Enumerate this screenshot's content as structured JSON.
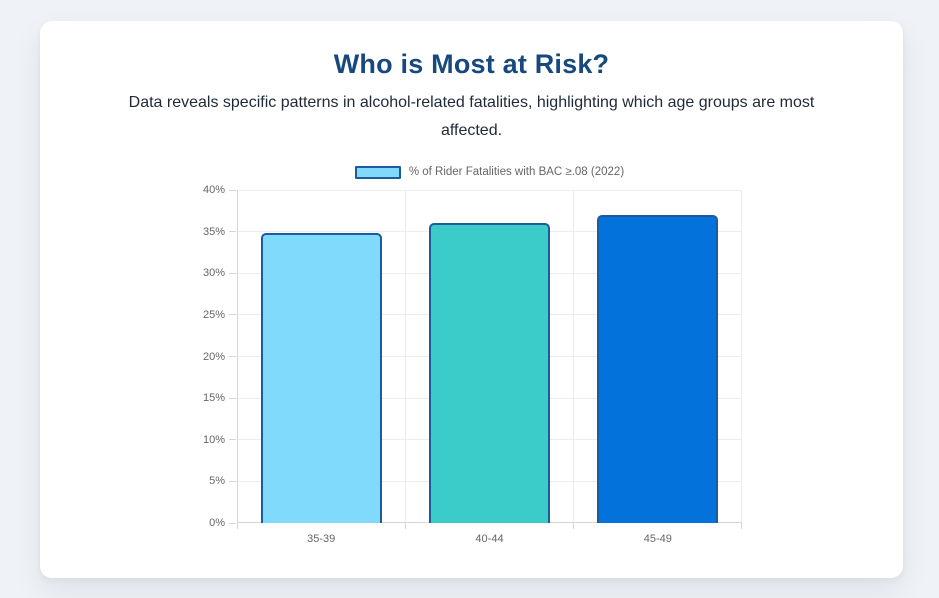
{
  "page": {
    "title": "Who is Most at Risk?",
    "subtitle": "Data reveals specific patterns in alcohol-related fatalities, highlighting which age groups are most affected."
  },
  "chart_data": {
    "type": "bar",
    "title": "Who is Most at Risk?",
    "legend_label": "% of Rider Fatalities with BAC ≥.08 (2022)",
    "legend_position": "top",
    "categories": [
      "35-39",
      "40-44",
      "45-49"
    ],
    "values": [
      34.8,
      36.0,
      37.0
    ],
    "ylim": [
      0,
      40
    ],
    "ytick_step": 5,
    "ytick_labels": [
      "0%",
      "5%",
      "10%",
      "15%",
      "20%",
      "25%",
      "30%",
      "35%",
      "40%"
    ],
    "grid": true,
    "bar_colors": [
      "#7FDAFB",
      "#3BCBC9",
      "#0373DB"
    ],
    "bar_border_color": "#1D5A9E",
    "legend_swatch_fill": "#7FDAFB"
  },
  "colors": {
    "background": "#EFF2F6",
    "card": "#FFFFFF",
    "title_text": "#17497F",
    "subtitle_text": "#1F2937",
    "axis_text": "#666666",
    "gridline": "#EDEDED",
    "axis_line": "#D6D6D6"
  }
}
